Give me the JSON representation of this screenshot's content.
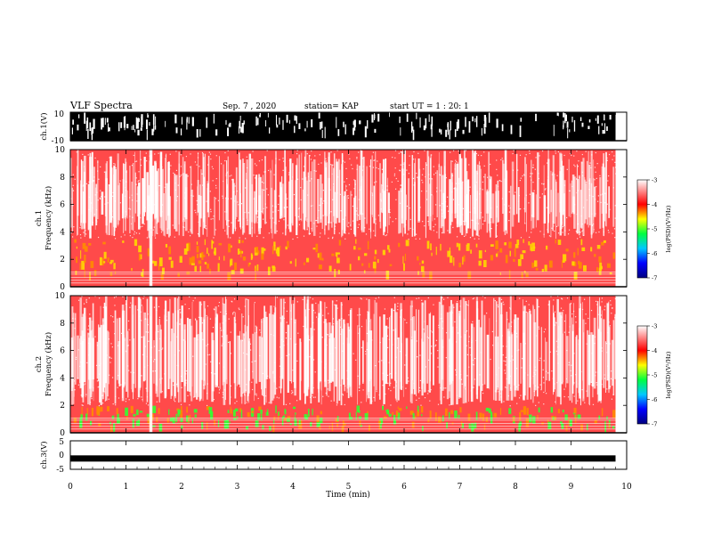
{
  "header": {
    "title": "VLF Spectra",
    "date": "Sep. 7 , 2020",
    "station": "station= KAP",
    "start": "start UT =  1 : 20: 1"
  },
  "chart_data": [
    {
      "type": "line",
      "name": "ch1-waveform",
      "ylabel": "ch.1(V)",
      "xlim": [
        0,
        10
      ],
      "ylim": [
        -10,
        10
      ],
      "ytick_labels": [
        "10",
        "-10"
      ],
      "data_extent_x_max": 9.8,
      "note_values": "saturated broadband signal filling most of range"
    },
    {
      "type": "heatmap",
      "name": "ch1-spectrogram",
      "ylabel": "ch.1\nFrequency (kHz)",
      "ylabel_line1": "ch.1",
      "ylabel_line2": "Frequency (kHz)",
      "xlim": [
        0,
        10
      ],
      "ylim": [
        0,
        10
      ],
      "ytick_labels": [
        "0",
        "2",
        "4",
        "6",
        "8",
        "10"
      ],
      "colorbar": {
        "range": [
          -7,
          -3
        ],
        "tick_labels": [
          "-3",
          "-4",
          "-5",
          "-6",
          "-7"
        ],
        "label": "log(PSD)(V²/Hz)"
      },
      "band_low_khz": [
        1,
        3.5
      ],
      "band_color": "yellow-red"
    },
    {
      "type": "heatmap",
      "name": "ch2-spectrogram",
      "ylabel_line1": "ch.2",
      "ylabel_line2": "Frequency (kHz)",
      "xlim": [
        0,
        10
      ],
      "ylim": [
        0,
        10
      ],
      "ytick_labels": [
        "0",
        "2",
        "4",
        "6",
        "8",
        "10"
      ],
      "colorbar": {
        "range": [
          -7,
          -3
        ],
        "tick_labels": [
          "-3",
          "-4",
          "-5",
          "-6",
          "-7"
        ],
        "label": "log(PSD)(V²/Hz)"
      },
      "band_low_khz": [
        0.5,
        2
      ],
      "band_color": "green"
    },
    {
      "type": "line",
      "name": "ch3-waveform",
      "ylabel": "ch.3(V)",
      "xlim": [
        0,
        10
      ],
      "ylim": [
        -5,
        5
      ],
      "ytick_labels": [
        "5",
        "0",
        "-5"
      ],
      "level_v": -1.2
    }
  ],
  "xaxis": {
    "label": "Time (min)",
    "tick_labels": [
      "0",
      "1",
      "2",
      "3",
      "4",
      "5",
      "6",
      "7",
      "8",
      "9",
      "10"
    ]
  },
  "colors": {
    "spectrogram_bg_red": "#ff1a1a",
    "yellow": "#ffd800",
    "green": "#33ff33",
    "white": "#ffffff"
  }
}
